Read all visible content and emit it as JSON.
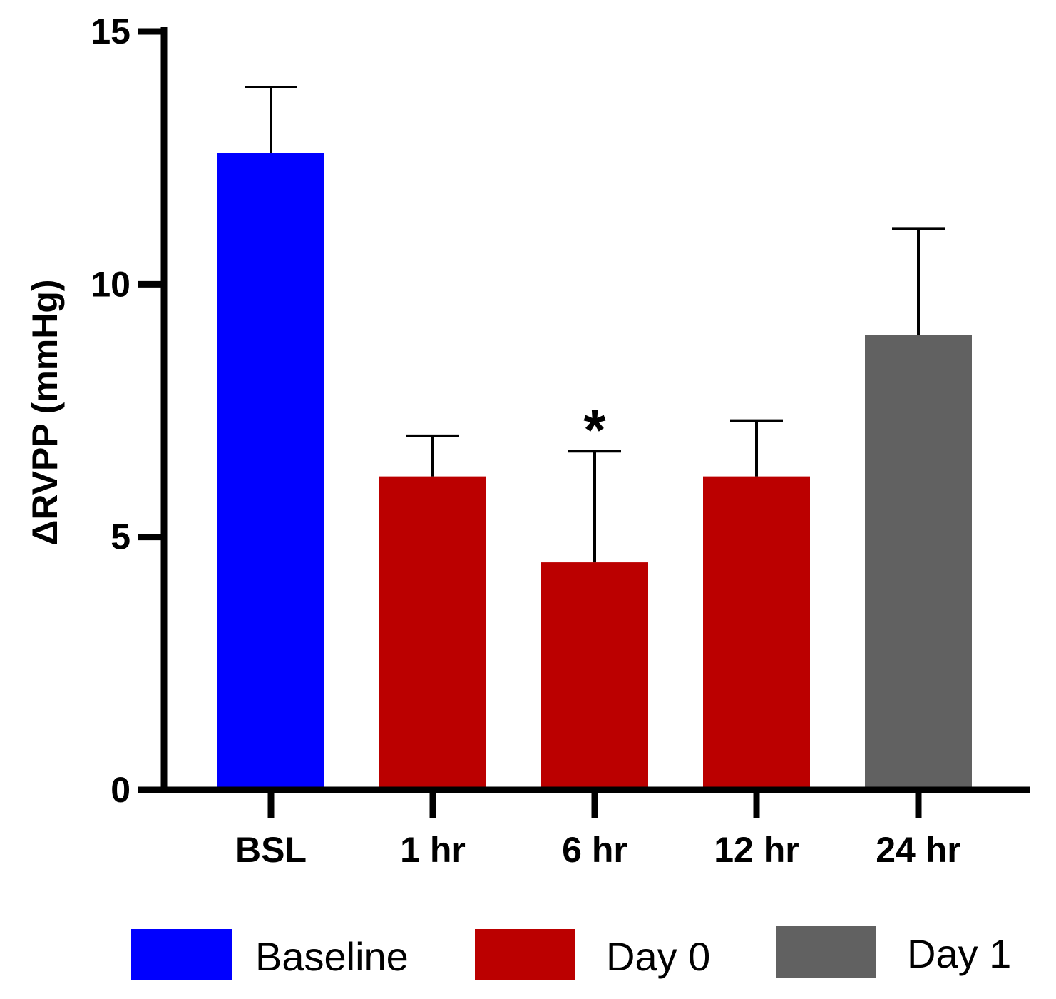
{
  "chart_data": {
    "type": "bar",
    "title": "",
    "xlabel": "",
    "ylabel": "ΔRVPP (mmHg)",
    "ylim": [
      0,
      15
    ],
    "yticks": [
      0,
      5,
      10,
      15
    ],
    "ytick_labels": [
      "0",
      "5",
      "10",
      "15"
    ],
    "categories": [
      "BSL",
      "1 hr",
      "6 hr",
      "12 hr",
      "24 hr"
    ],
    "values": [
      12.6,
      6.2,
      4.5,
      6.2,
      9.0
    ],
    "errors": [
      1.3,
      0.8,
      2.2,
      1.1,
      2.1
    ],
    "groups": [
      "Baseline",
      "Day 0",
      "Day 0",
      "Day 0",
      "Day 1"
    ],
    "annotations": [
      {
        "category": "6 hr",
        "text": "*"
      }
    ],
    "legend": {
      "placement": "bottom",
      "entries": [
        {
          "label": "Baseline",
          "color": "#0000FF"
        },
        {
          "label": "Day 0",
          "color": "#BB0000"
        },
        {
          "label": "Day 1",
          "color": "#616161"
        }
      ]
    },
    "grid": false
  }
}
